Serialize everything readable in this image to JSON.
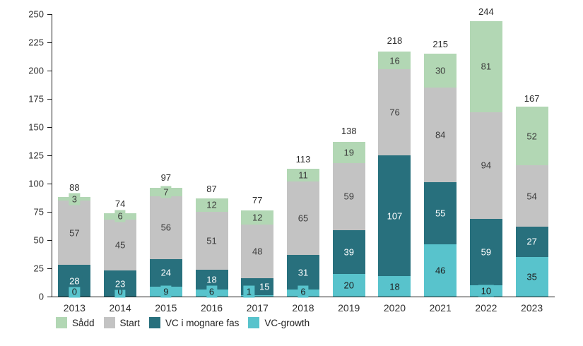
{
  "chart_data": {
    "type": "bar",
    "stacked": true,
    "title": "",
    "xlabel": "",
    "ylabel": "",
    "categories": [
      "2013",
      "2014",
      "2015",
      "2016",
      "2017",
      "2018",
      "2019",
      "2020",
      "2021",
      "2022",
      "2023"
    ],
    "series": [
      {
        "name": "Sådd",
        "color": "#b2d7b4",
        "text_color": "#3c3c3c",
        "values": [
          3,
          6,
          7,
          12,
          12,
          11,
          19,
          16,
          30,
          81,
          52
        ]
      },
      {
        "name": "Start",
        "color": "#c3c3c3",
        "text_color": "#3c3c3c",
        "values": [
          57,
          45,
          56,
          51,
          48,
          65,
          59,
          76,
          84,
          94,
          54
        ]
      },
      {
        "name": "VC i mognare fas",
        "color": "#28707d",
        "text_color": "#ffffff",
        "values": [
          28,
          23,
          24,
          18,
          15,
          31,
          39,
          107,
          55,
          59,
          27
        ]
      },
      {
        "name": "VC-growth",
        "color": "#58c3cc",
        "text_color": "#1e1e1e",
        "values": [
          0,
          0,
          9,
          6,
          1,
          6,
          20,
          18,
          46,
          10,
          35
        ]
      }
    ],
    "stack_order_bottom_to_top": [
      "VC-growth",
      "VC i mognare fas",
      "Start",
      "Sådd"
    ],
    "totals": [
      88,
      74,
      97,
      87,
      77,
      113,
      138,
      218,
      215,
      244,
      167
    ],
    "ylim": [
      0,
      250
    ],
    "yticks": [
      0,
      25,
      50,
      75,
      100,
      125,
      150,
      175,
      200,
      225,
      250
    ],
    "grid": false,
    "legend_position": "bottom-left",
    "legend_order": [
      "Sådd",
      "Start",
      "VC i mognare fas",
      "VC-growth"
    ],
    "label_offsets": [
      {
        "category": "2017",
        "series": "VC i mognare fas",
        "dx": 10
      },
      {
        "category": "2017",
        "series": "VC-growth",
        "dx": -12
      }
    ],
    "axis_color": "#1a1a1a",
    "background": "#ffffff"
  }
}
